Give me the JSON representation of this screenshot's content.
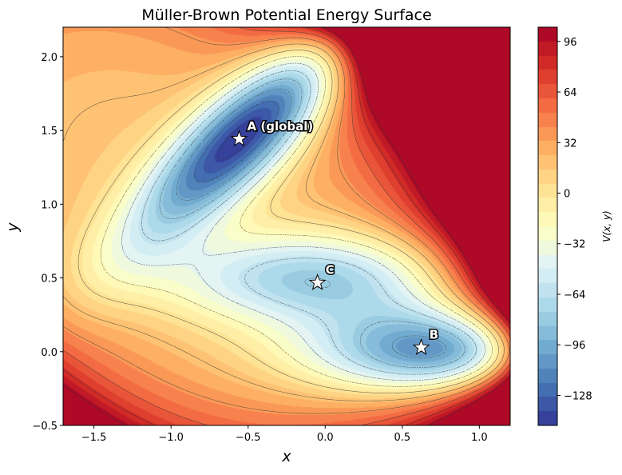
{
  "chart_data": {
    "type": "contour",
    "title": "Müller-Brown Potential Energy Surface",
    "xlabel": "x",
    "ylabel": "y",
    "xlim": [
      -1.7,
      1.2
    ],
    "ylim": [
      -0.5,
      2.2
    ],
    "xticks": [
      -1.5,
      -1.0,
      -0.5,
      0.0,
      0.5,
      1.0
    ],
    "xtick_labels": [
      "−1.5",
      "−1.0",
      "−0.5",
      "0.0",
      "0.5",
      "1.0"
    ],
    "yticks": [
      -0.5,
      0.0,
      0.5,
      1.0,
      1.5,
      2.0
    ],
    "ytick_labels": [
      "−0.5",
      "0.0",
      "0.5",
      "1.0",
      "1.5",
      "2.0"
    ],
    "vmin": -147,
    "vmax": 105,
    "colormap": "RdYlBu_r",
    "colorbar": {
      "label": "V(x, y)",
      "ticks": [
        96,
        64,
        32,
        0,
        -32,
        -64,
        -96,
        -128
      ],
      "tick_labels": [
        "96",
        "64",
        "32",
        "0",
        "−32",
        "−64",
        "−96",
        "−128"
      ]
    },
    "minima": [
      {
        "label": "A (global)",
        "x": -0.558,
        "y": 1.442
      },
      {
        "label": "B",
        "x": 0.623,
        "y": 0.028
      },
      {
        "label": "C",
        "x": -0.05,
        "y": 0.467
      }
    ]
  }
}
